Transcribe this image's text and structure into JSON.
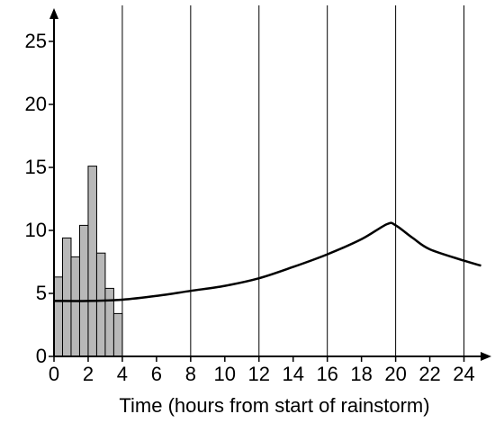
{
  "chart_data": {
    "type": "histogram",
    "xlabel": "Time (hours from start of rainstorm)",
    "bins": [
      0,
      0.5,
      1,
      1.5,
      2,
      2.5,
      3,
      3.5,
      4
    ],
    "values": [
      6.3,
      9.4,
      7.9,
      10.4,
      15.1,
      8.2,
      5.4,
      3.4
    ],
    "color": "#b8b8b8",
    "line": {
      "x": [
        0,
        2,
        4,
        6,
        8,
        10,
        12,
        14,
        16,
        18,
        19.5,
        20,
        21,
        22,
        24,
        25
      ],
      "values": [
        4.4,
        4.4,
        4.5,
        4.8,
        5.2,
        5.6,
        6.2,
        7.1,
        8.1,
        9.3,
        10.5,
        10.4,
        9.4,
        8.5,
        7.6,
        7.2
      ],
      "color": "#000000"
    },
    "xlim": [
      0,
      25.5
    ],
    "ylim": [
      0,
      27.5
    ],
    "xticks": [
      0,
      2,
      4,
      6,
      8,
      10,
      12,
      14,
      16,
      18,
      20,
      22,
      24
    ],
    "yticks": [
      0,
      5,
      10,
      15,
      20,
      25
    ],
    "xgrid": [
      4,
      8,
      12,
      16,
      20,
      24
    ]
  }
}
